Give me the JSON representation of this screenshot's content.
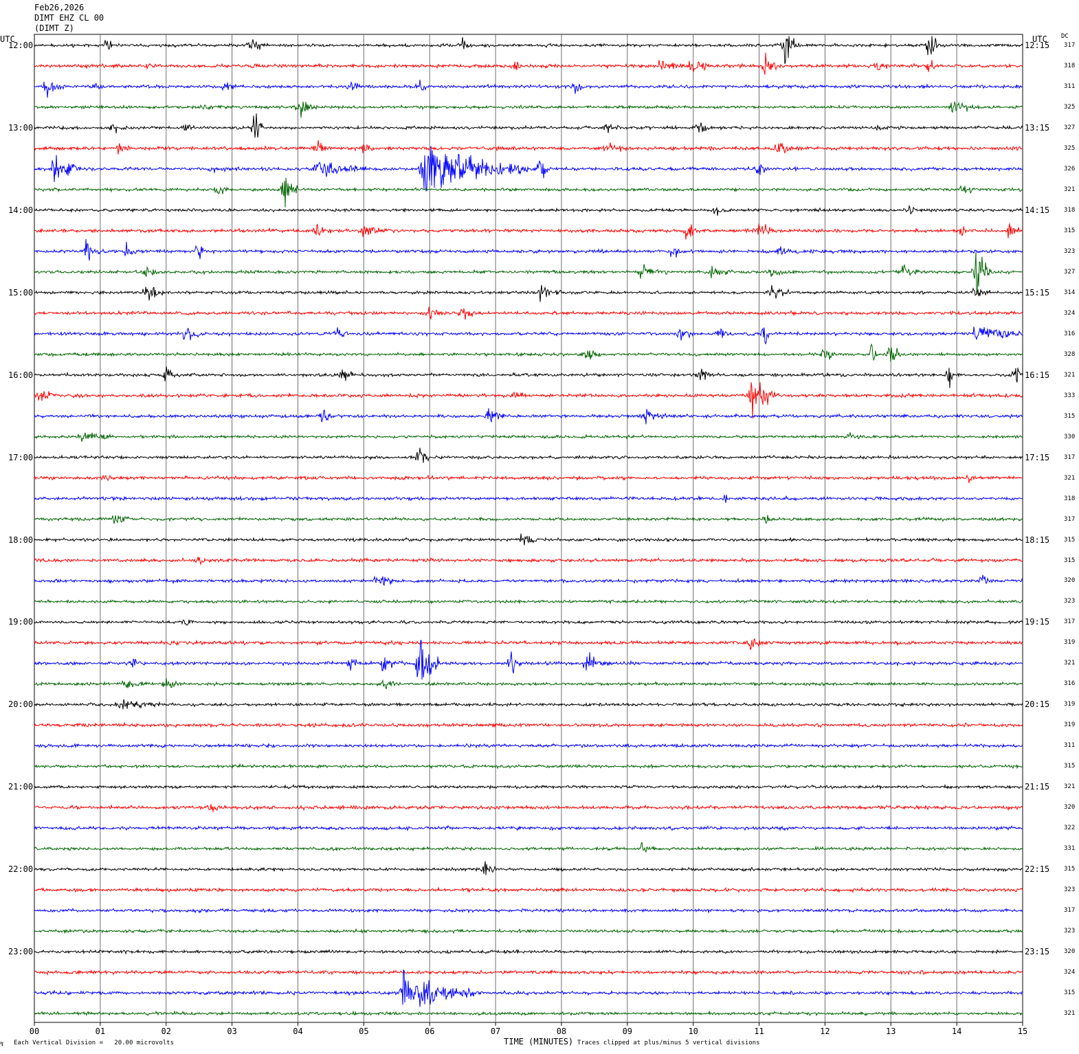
{
  "header": {
    "date": "Feb26,2026",
    "station": "DIMT EHZ CL 00",
    "component": "(DIMT Z)"
  },
  "left_axis_title": "UTC",
  "right_axis_title": "UTC",
  "dc_title": "DC",
  "left_times": [
    "12:00",
    "13:00",
    "14:00",
    "15:00",
    "16:00",
    "17:00",
    "18:00",
    "19:00",
    "20:00",
    "21:00",
    "22:00",
    "23:00"
  ],
  "right_times": [
    "12:15",
    "13:15",
    "14:15",
    "15:15",
    "16:15",
    "17:15",
    "18:15",
    "19:15",
    "20:15",
    "21:15",
    "22:15",
    "23:15"
  ],
  "footer": {
    "scale_note": "Each Vertical Division =   20.00 microvolts",
    "xlabel": "TIME (MINUTES)",
    "clip_note": "Traces clipped at plus/minus 5 vertical divisions"
  },
  "chart_data": {
    "type": "line",
    "title": "Feb26,2026",
    "xlabel": "TIME (MINUTES)",
    "ylabel": "UTC",
    "x_ticks": [
      "00",
      "01",
      "02",
      "03",
      "04",
      "05",
      "06",
      "07",
      "08",
      "09",
      "10",
      "11",
      "12",
      "13",
      "14",
      "15"
    ],
    "xlim": [
      0,
      15
    ],
    "grid": true,
    "trace_minutes": 15,
    "trace_count": 48,
    "trace_colors": [
      "#000000",
      "#ff0000",
      "#0000ff",
      "#006400"
    ],
    "dc_offsets": [
      317,
      318,
      311,
      325,
      327,
      325,
      326,
      321,
      318,
      315,
      323,
      327,
      314,
      324,
      316,
      328,
      321,
      333,
      315,
      330,
      317,
      321,
      318,
      317,
      315,
      315,
      320,
      323,
      317,
      319,
      321,
      316,
      319,
      319,
      311,
      315,
      321,
      320,
      322,
      331,
      315,
      323,
      317,
      323,
      320,
      324,
      315,
      321
    ],
    "events": [
      {
        "trace": 0,
        "minute": 1.1,
        "amp": 6,
        "dur": 0.15
      },
      {
        "trace": 0,
        "minute": 3.3,
        "amp": 8,
        "dur": 0.25
      },
      {
        "trace": 0,
        "minute": 6.5,
        "amp": 7,
        "dur": 0.15
      },
      {
        "trace": 0,
        "minute": 11.4,
        "amp": 22,
        "dur": 0.2
      },
      {
        "trace": 0,
        "minute": 13.6,
        "amp": 20,
        "dur": 0.15
      },
      {
        "trace": 1,
        "minute": 1.75,
        "amp": 6,
        "dur": 0.1
      },
      {
        "trace": 1,
        "minute": 7.3,
        "amp": 6,
        "dur": 0.1
      },
      {
        "trace": 1,
        "minute": 9.5,
        "amp": 7,
        "dur": 0.4
      },
      {
        "trace": 1,
        "minute": 10.0,
        "amp": 9,
        "dur": 0.25
      },
      {
        "trace": 1,
        "minute": 11.1,
        "amp": 12,
        "dur": 0.25
      },
      {
        "trace": 1,
        "minute": 12.8,
        "amp": 6,
        "dur": 0.15
      },
      {
        "trace": 1,
        "minute": 13.6,
        "amp": 6,
        "dur": 0.1
      },
      {
        "trace": 2,
        "minute": 0.2,
        "amp": 12,
        "dur": 0.2
      },
      {
        "trace": 2,
        "minute": 0.95,
        "amp": 7,
        "dur": 0.15
      },
      {
        "trace": 2,
        "minute": 2.9,
        "amp": 6,
        "dur": 0.2
      },
      {
        "trace": 2,
        "minute": 4.8,
        "amp": 6,
        "dur": 0.15
      },
      {
        "trace": 2,
        "minute": 5.85,
        "amp": 6,
        "dur": 0.15
      },
      {
        "trace": 2,
        "minute": 8.2,
        "amp": 6,
        "dur": 0.2
      },
      {
        "trace": 3,
        "minute": 2.5,
        "amp": 4,
        "dur": 0.4
      },
      {
        "trace": 3,
        "minute": 4.0,
        "amp": 10,
        "dur": 0.3
      },
      {
        "trace": 3,
        "minute": 13.9,
        "amp": 6,
        "dur": 0.5
      },
      {
        "trace": 4,
        "minute": 1.2,
        "amp": 6,
        "dur": 0.2
      },
      {
        "trace": 4,
        "minute": 2.3,
        "amp": 5,
        "dur": 0.1
      },
      {
        "trace": 4,
        "minute": 3.35,
        "amp": 20,
        "dur": 0.15
      },
      {
        "trace": 4,
        "minute": 8.7,
        "amp": 5,
        "dur": 0.2
      },
      {
        "trace": 4,
        "minute": 10.1,
        "amp": 9,
        "dur": 0.15
      },
      {
        "trace": 4,
        "minute": 12.8,
        "amp": 5,
        "dur": 0.1
      },
      {
        "trace": 5,
        "minute": 1.3,
        "amp": 6,
        "dur": 0.15
      },
      {
        "trace": 5,
        "minute": 4.3,
        "amp": 7,
        "dur": 0.2
      },
      {
        "trace": 5,
        "minute": 5.0,
        "amp": 7,
        "dur": 0.2
      },
      {
        "trace": 5,
        "minute": 8.7,
        "amp": 6,
        "dur": 0.3
      },
      {
        "trace": 5,
        "minute": 11.3,
        "amp": 10,
        "dur": 0.2
      },
      {
        "trace": 6,
        "minute": 0.3,
        "amp": 16,
        "dur": 0.4
      },
      {
        "trace": 6,
        "minute": 2.7,
        "amp": 6,
        "dur": 0.2
      },
      {
        "trace": 6,
        "minute": 4.3,
        "amp": 8,
        "dur": 0.8
      },
      {
        "trace": 6,
        "minute": 5.9,
        "amp": 30,
        "dur": 1.6
      },
      {
        "trace": 6,
        "minute": 7.7,
        "amp": 18,
        "dur": 0.1
      },
      {
        "trace": 6,
        "minute": 11.0,
        "amp": 8,
        "dur": 0.2
      },
      {
        "trace": 7,
        "minute": 2.8,
        "amp": 5,
        "dur": 0.15
      },
      {
        "trace": 7,
        "minute": 3.8,
        "amp": 16,
        "dur": 0.25
      },
      {
        "trace": 7,
        "minute": 14.1,
        "amp": 5,
        "dur": 0.2
      },
      {
        "trace": 8,
        "minute": 10.35,
        "amp": 7,
        "dur": 0.15
      },
      {
        "trace": 8,
        "minute": 13.3,
        "amp": 6,
        "dur": 0.1
      },
      {
        "trace": 9,
        "minute": 4.3,
        "amp": 6,
        "dur": 0.2
      },
      {
        "trace": 9,
        "minute": 5.0,
        "amp": 7,
        "dur": 0.3
      },
      {
        "trace": 9,
        "minute": 9.9,
        "amp": 10,
        "dur": 0.2
      },
      {
        "trace": 9,
        "minute": 11.0,
        "amp": 7,
        "dur": 0.3
      },
      {
        "trace": 9,
        "minute": 14.1,
        "amp": 6,
        "dur": 0.1
      },
      {
        "trace": 9,
        "minute": 14.8,
        "amp": 6,
        "dur": 0.15
      },
      {
        "trace": 10,
        "minute": 0.8,
        "amp": 12,
        "dur": 0.2
      },
      {
        "trace": 10,
        "minute": 1.4,
        "amp": 6,
        "dur": 0.2
      },
      {
        "trace": 10,
        "minute": 2.5,
        "amp": 12,
        "dur": 0.1
      },
      {
        "trace": 10,
        "minute": 9.7,
        "amp": 6,
        "dur": 0.2
      },
      {
        "trace": 10,
        "minute": 11.3,
        "amp": 6,
        "dur": 0.3
      },
      {
        "trace": 11,
        "minute": 1.7,
        "amp": 5,
        "dur": 0.2
      },
      {
        "trace": 11,
        "minute": 9.2,
        "amp": 8,
        "dur": 0.4
      },
      {
        "trace": 11,
        "minute": 10.3,
        "amp": 8,
        "dur": 0.3
      },
      {
        "trace": 11,
        "minute": 11.2,
        "amp": 6,
        "dur": 0.2
      },
      {
        "trace": 11,
        "minute": 13.2,
        "amp": 6,
        "dur": 0.2
      },
      {
        "trace": 11,
        "minute": 14.3,
        "amp": 28,
        "dur": 0.25
      },
      {
        "trace": 12,
        "minute": 1.7,
        "amp": 12,
        "dur": 0.3
      },
      {
        "trace": 12,
        "minute": 7.7,
        "amp": 12,
        "dur": 0.3
      },
      {
        "trace": 12,
        "minute": 11.2,
        "amp": 9,
        "dur": 0.25
      },
      {
        "trace": 12,
        "minute": 14.3,
        "amp": 6,
        "dur": 0.2
      },
      {
        "trace": 13,
        "minute": 6.0,
        "amp": 6,
        "dur": 0.2
      },
      {
        "trace": 13,
        "minute": 6.5,
        "amp": 5,
        "dur": 0.2
      },
      {
        "trace": 14,
        "minute": 2.3,
        "amp": 6,
        "dur": 0.3
      },
      {
        "trace": 14,
        "minute": 4.6,
        "amp": 6,
        "dur": 0.15
      },
      {
        "trace": 14,
        "minute": 9.8,
        "amp": 6,
        "dur": 0.2
      },
      {
        "trace": 14,
        "minute": 10.4,
        "amp": 6,
        "dur": 0.2
      },
      {
        "trace": 14,
        "minute": 11.1,
        "amp": 18,
        "dur": 0.05
      },
      {
        "trace": 14,
        "minute": 14.3,
        "amp": 9,
        "dur": 0.8
      },
      {
        "trace": 15,
        "minute": 8.4,
        "amp": 6,
        "dur": 0.2
      },
      {
        "trace": 15,
        "minute": 12.0,
        "amp": 7,
        "dur": 0.2
      },
      {
        "trace": 15,
        "minute": 12.7,
        "amp": 10,
        "dur": 0.1
      },
      {
        "trace": 15,
        "minute": 13.0,
        "amp": 12,
        "dur": 0.15
      },
      {
        "trace": 16,
        "minute": 2.0,
        "amp": 7,
        "dur": 0.15
      },
      {
        "trace": 16,
        "minute": 4.7,
        "amp": 7,
        "dur": 0.15
      },
      {
        "trace": 16,
        "minute": 10.1,
        "amp": 6,
        "dur": 0.2
      },
      {
        "trace": 16,
        "minute": 13.9,
        "amp": 16,
        "dur": 0.05
      },
      {
        "trace": 16,
        "minute": 14.9,
        "amp": 7,
        "dur": 0.15
      },
      {
        "trace": 17,
        "minute": 0.1,
        "amp": 8,
        "dur": 0.2
      },
      {
        "trace": 17,
        "minute": 7.3,
        "amp": 5,
        "dur": 0.2
      },
      {
        "trace": 17,
        "minute": 10.9,
        "amp": 22,
        "dur": 0.4
      },
      {
        "trace": 18,
        "minute": 4.4,
        "amp": 9,
        "dur": 0.1
      },
      {
        "trace": 18,
        "minute": 6.9,
        "amp": 7,
        "dur": 0.25
      },
      {
        "trace": 18,
        "minute": 9.3,
        "amp": 8,
        "dur": 0.3
      },
      {
        "trace": 19,
        "minute": 0.7,
        "amp": 5,
        "dur": 0.5
      },
      {
        "trace": 19,
        "minute": 12.4,
        "amp": 4,
        "dur": 0.2
      },
      {
        "trace": 20,
        "minute": 5.85,
        "amp": 16,
        "dur": 0.15
      },
      {
        "trace": 21,
        "minute": 1.05,
        "amp": 5,
        "dur": 0.1
      },
      {
        "trace": 21,
        "minute": 14.2,
        "amp": 5,
        "dur": 0.15
      },
      {
        "trace": 22,
        "minute": 10.5,
        "amp": 5,
        "dur": 0.1
      },
      {
        "trace": 23,
        "minute": 1.25,
        "amp": 9,
        "dur": 0.2
      },
      {
        "trace": 23,
        "minute": 11.1,
        "amp": 5,
        "dur": 0.15
      },
      {
        "trace": 24,
        "minute": 7.4,
        "amp": 6,
        "dur": 0.3
      },
      {
        "trace": 25,
        "minute": 2.5,
        "amp": 5,
        "dur": 0.1
      },
      {
        "trace": 26,
        "minute": 5.2,
        "amp": 6,
        "dur": 0.4
      },
      {
        "trace": 26,
        "minute": 14.4,
        "amp": 7,
        "dur": 0.1
      },
      {
        "trace": 28,
        "minute": 2.3,
        "amp": 4,
        "dur": 0.2
      },
      {
        "trace": 29,
        "minute": 2.1,
        "amp": 5,
        "dur": 0.1
      },
      {
        "trace": 29,
        "minute": 10.9,
        "amp": 6,
        "dur": 0.2
      },
      {
        "trace": 30,
        "minute": 4.8,
        "amp": 8,
        "dur": 0.15
      },
      {
        "trace": 30,
        "minute": 5.3,
        "amp": 8,
        "dur": 0.4
      },
      {
        "trace": 30,
        "minute": 5.85,
        "amp": 38,
        "dur": 0.3
      },
      {
        "trace": 30,
        "minute": 7.25,
        "amp": 12,
        "dur": 0.15
      },
      {
        "trace": 30,
        "minute": 8.4,
        "amp": 12,
        "dur": 0.3
      },
      {
        "trace": 30,
        "minute": 1.5,
        "amp": 5,
        "dur": 0.2
      },
      {
        "trace": 31,
        "minute": 1.4,
        "amp": 5,
        "dur": 0.3
      },
      {
        "trace": 31,
        "minute": 2.0,
        "amp": 6,
        "dur": 0.25
      },
      {
        "trace": 31,
        "minute": 5.3,
        "amp": 5,
        "dur": 0.2
      },
      {
        "trace": 32,
        "minute": 1.3,
        "amp": 5,
        "dur": 0.6
      },
      {
        "trace": 37,
        "minute": 2.7,
        "amp": 7,
        "dur": 0.2
      },
      {
        "trace": 39,
        "minute": 9.25,
        "amp": 7,
        "dur": 0.15
      },
      {
        "trace": 40,
        "minute": 6.85,
        "amp": 7,
        "dur": 0.15
      },
      {
        "trace": 46,
        "minute": 5.6,
        "amp": 22,
        "dur": 1.1
      }
    ]
  }
}
